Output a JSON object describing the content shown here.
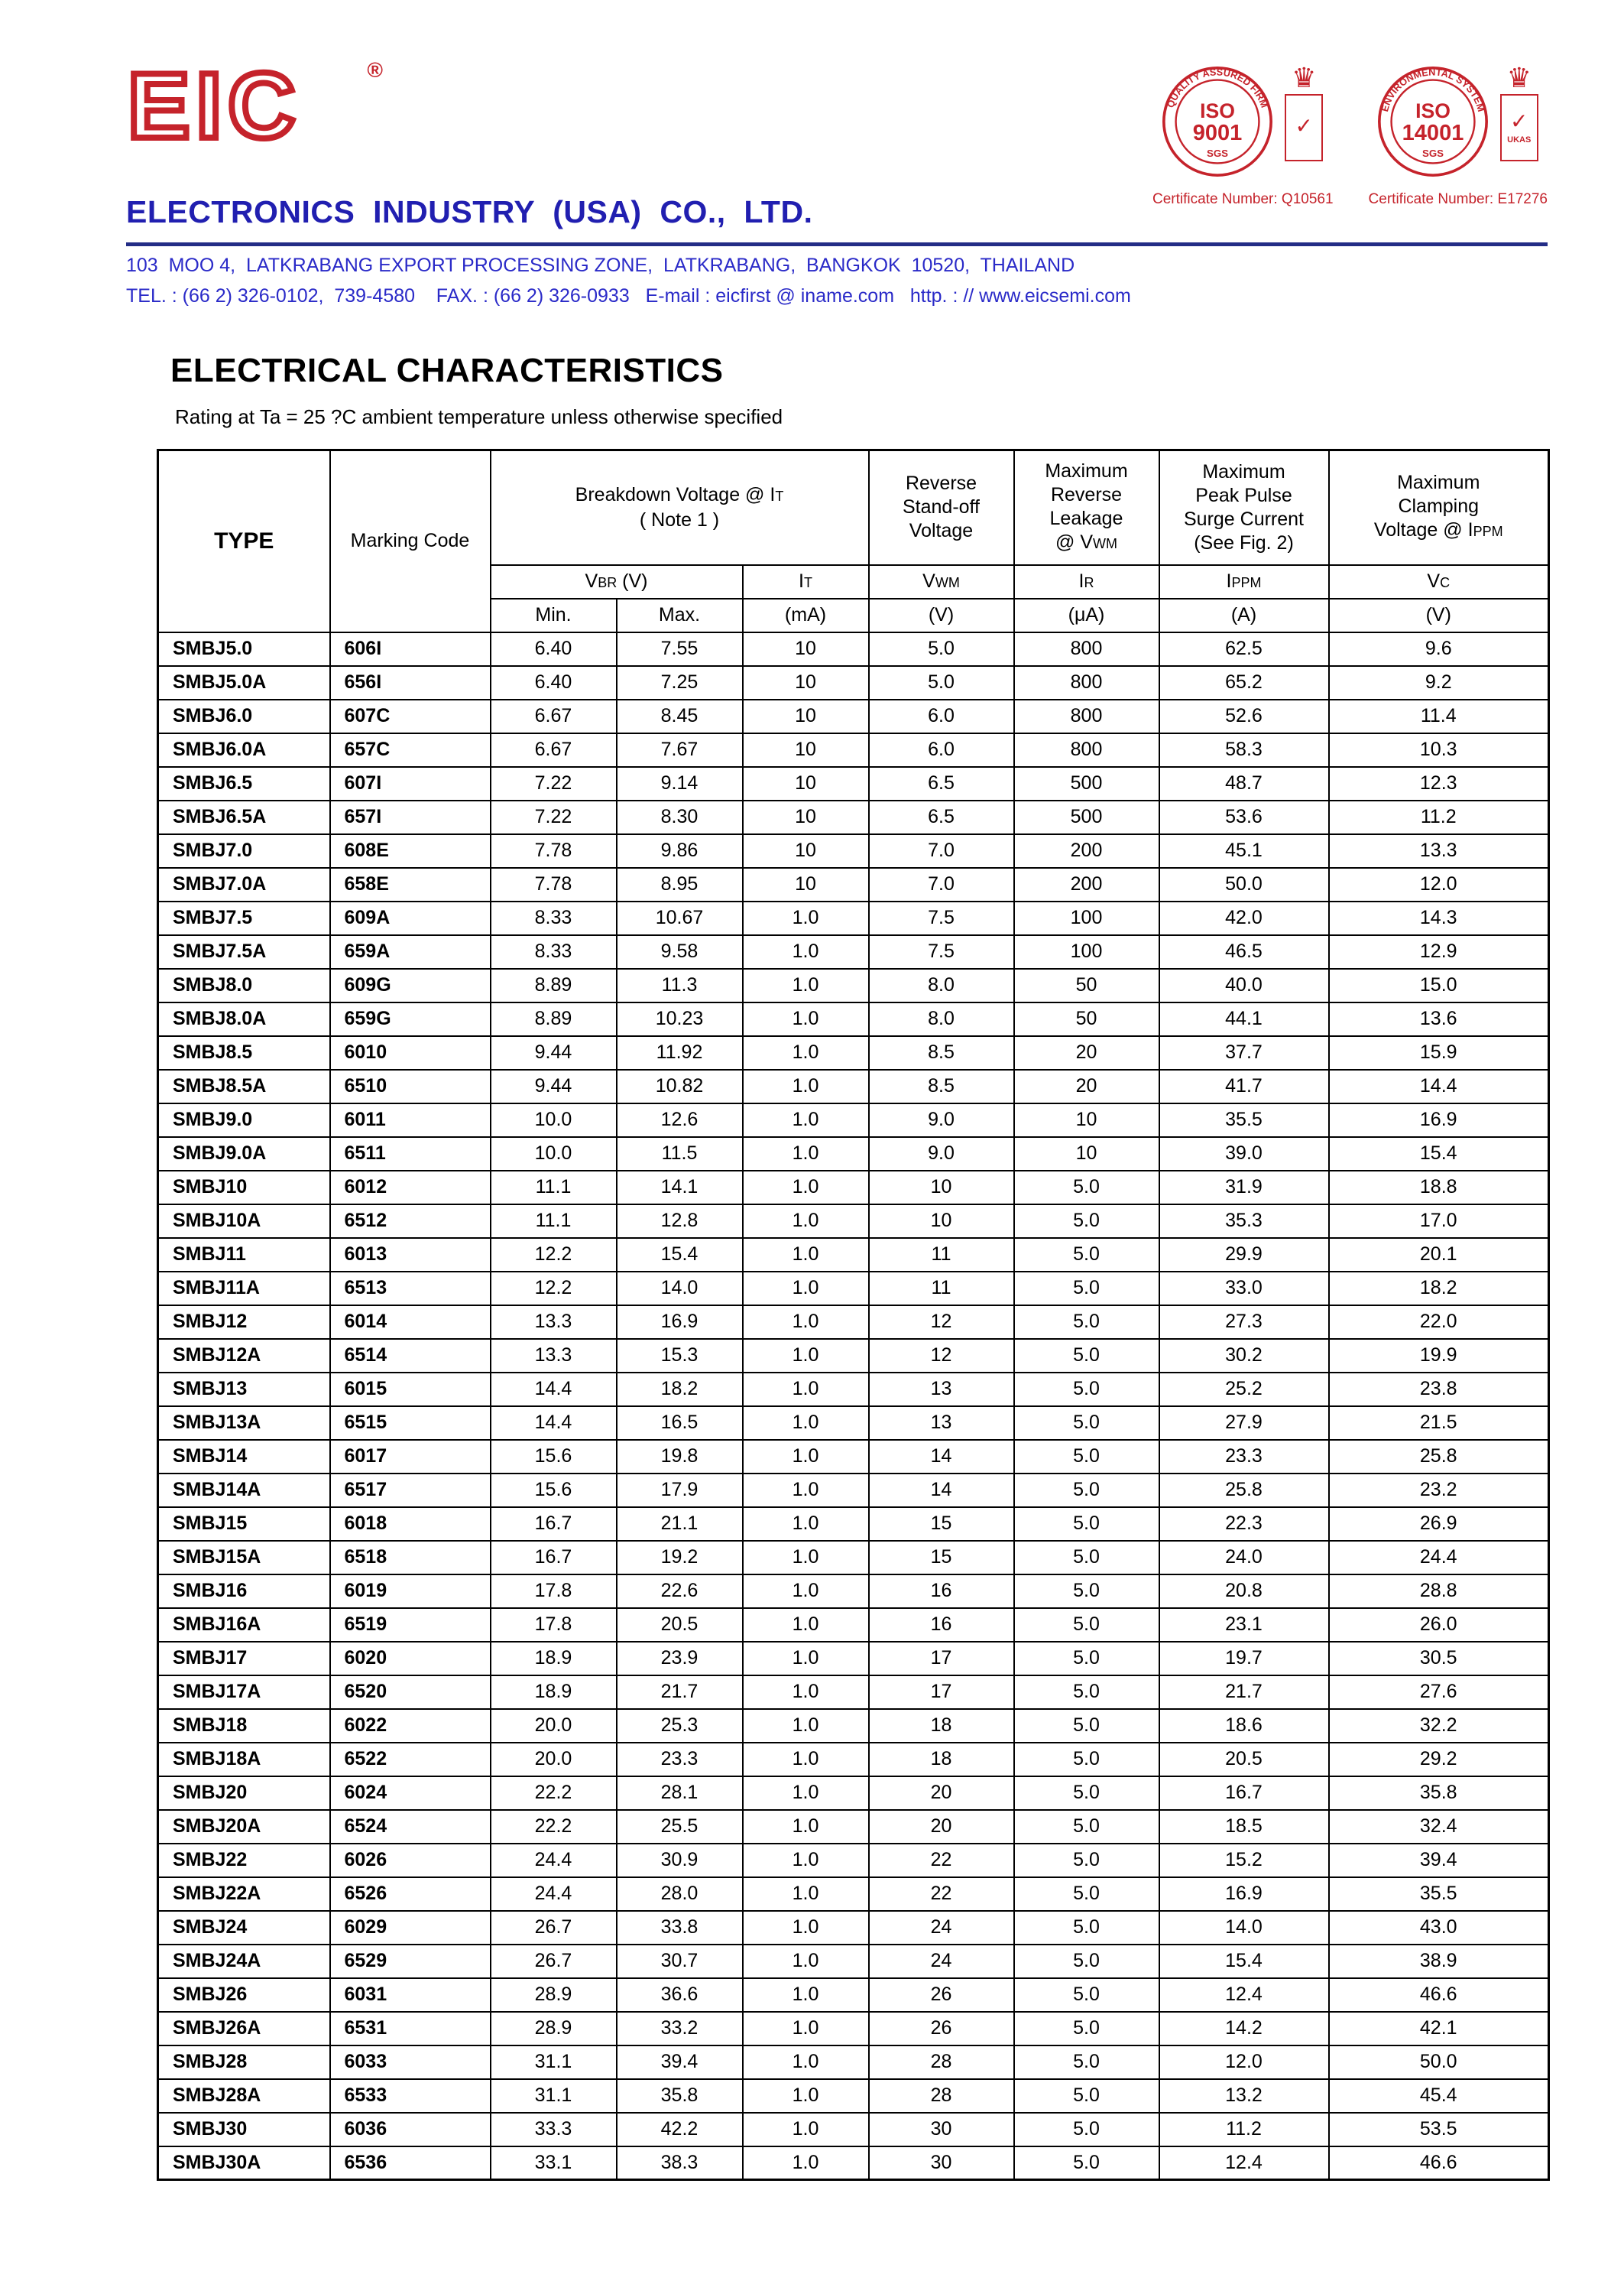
{
  "palette": {
    "red": "#c5232b",
    "blue": "#211fb0",
    "blue2": "#2a2ac8",
    "navy": "#232d86"
  },
  "header": {
    "logo": "EIC",
    "registered": "®",
    "company": "ELECTRONICS  INDUSTRY  (USA)  CO.,  LTD.",
    "badge1": {
      "ring": "QUALITY ASSURED FIRM",
      "iso": "ISO",
      "num": "9001",
      "footer": "SGS",
      "crown": "♛",
      "check": "✓",
      "mini_label": "",
      "cert": "Certificate Number: Q10561"
    },
    "badge2": {
      "ring": "ENVIRONMENTAL SYSTEM",
      "iso": "ISO",
      "num": "14001",
      "footer": "SGS",
      "crown": "♛",
      "check": "✓",
      "mini_label": "UKAS",
      "cert": "Certificate Number: E17276"
    },
    "address": "103  MOO 4,  LATKRABANG EXPORT PROCESSING ZONE,  LATKRABANG,  BANGKOK  10520,  THAILAND",
    "contact": "TEL. : (66 2) 326-0102,  739-4580    FAX. : (66 2) 326-0933   E-mail : eicfirst @ iname.com   http. : // www.eicsemi.com"
  },
  "section": {
    "title": "ELECTRICAL CHARACTERISTICS",
    "subtitle": "Rating at Ta = 25 ?C ambient temperature unless otherwise specified"
  },
  "table": {
    "headers": {
      "type": "TYPE",
      "marking": "Marking Code",
      "breakdown": {
        "pre": "Breakdown Voltage @  I",
        "sub": "T",
        "note": "( Note 1 )"
      },
      "standoff": [
        "Reverse",
        "Stand-off",
        "Voltage"
      ],
      "leakage": [
        "Maximum",
        "Reverse",
        "Leakage"
      ],
      "leakage_at": {
        "pre": "@ V",
        "sub": "WM"
      },
      "surge": [
        "Maximum",
        "Peak Pulse",
        "Surge Current",
        "(See Fig. 2)"
      ],
      "clamping": [
        "Maximum",
        "Clamping"
      ],
      "clamping_at": {
        "pre": "Voltage @ I",
        "sub": "PPM"
      }
    },
    "symbols": {
      "vbr": {
        "base": "V",
        "sub": "BR",
        "unit": "  (V)"
      },
      "it": {
        "base": "I",
        "sub": "T"
      },
      "vwm": {
        "base": "V",
        "sub": "WM"
      },
      "ir": {
        "base": "I",
        "sub": "R"
      },
      "ippm": {
        "base": "I",
        "sub": "PPM"
      },
      "vc": {
        "base": "V",
        "sub": "C"
      }
    },
    "units": {
      "min": "Min.",
      "max": "Max.",
      "it": "(mA)",
      "vwm": "(V)",
      "ir": "(μA)",
      "ippm": "(A)",
      "vc": "(V)"
    },
    "rows": [
      [
        "SMBJ5.0",
        "606I",
        "6.40",
        "7.55",
        "10",
        "5.0",
        "800",
        "62.5",
        "9.6"
      ],
      [
        "SMBJ5.0A",
        "656I",
        "6.40",
        "7.25",
        "10",
        "5.0",
        "800",
        "65.2",
        "9.2"
      ],
      [
        "SMBJ6.0",
        "607C",
        "6.67",
        "8.45",
        "10",
        "6.0",
        "800",
        "52.6",
        "11.4"
      ],
      [
        "SMBJ6.0A",
        "657C",
        "6.67",
        "7.67",
        "10",
        "6.0",
        "800",
        "58.3",
        "10.3"
      ],
      [
        "SMBJ6.5",
        "607I",
        "7.22",
        "9.14",
        "10",
        "6.5",
        "500",
        "48.7",
        "12.3"
      ],
      [
        "SMBJ6.5A",
        "657I",
        "7.22",
        "8.30",
        "10",
        "6.5",
        "500",
        "53.6",
        "11.2"
      ],
      [
        "SMBJ7.0",
        "608E",
        "7.78",
        "9.86",
        "10",
        "7.0",
        "200",
        "45.1",
        "13.3"
      ],
      [
        "SMBJ7.0A",
        "658E",
        "7.78",
        "8.95",
        "10",
        "7.0",
        "200",
        "50.0",
        "12.0"
      ],
      [
        "SMBJ7.5",
        "609A",
        "8.33",
        "10.67",
        "1.0",
        "7.5",
        "100",
        "42.0",
        "14.3"
      ],
      [
        "SMBJ7.5A",
        "659A",
        "8.33",
        "9.58",
        "1.0",
        "7.5",
        "100",
        "46.5",
        "12.9"
      ],
      [
        "SMBJ8.0",
        "609G",
        "8.89",
        "11.3",
        "1.0",
        "8.0",
        "50",
        "40.0",
        "15.0"
      ],
      [
        "SMBJ8.0A",
        "659G",
        "8.89",
        "10.23",
        "1.0",
        "8.0",
        "50",
        "44.1",
        "13.6"
      ],
      [
        "SMBJ8.5",
        "6010",
        "9.44",
        "11.92",
        "1.0",
        "8.5",
        "20",
        "37.7",
        "15.9"
      ],
      [
        "SMBJ8.5A",
        "6510",
        "9.44",
        "10.82",
        "1.0",
        "8.5",
        "20",
        "41.7",
        "14.4"
      ],
      [
        "SMBJ9.0",
        "6011",
        "10.0",
        "12.6",
        "1.0",
        "9.0",
        "10",
        "35.5",
        "16.9"
      ],
      [
        "SMBJ9.0A",
        "6511",
        "10.0",
        "11.5",
        "1.0",
        "9.0",
        "10",
        "39.0",
        "15.4"
      ],
      [
        "SMBJ10",
        "6012",
        "11.1",
        "14.1",
        "1.0",
        "10",
        "5.0",
        "31.9",
        "18.8"
      ],
      [
        "SMBJ10A",
        "6512",
        "11.1",
        "12.8",
        "1.0",
        "10",
        "5.0",
        "35.3",
        "17.0"
      ],
      [
        "SMBJ11",
        "6013",
        "12.2",
        "15.4",
        "1.0",
        "11",
        "5.0",
        "29.9",
        "20.1"
      ],
      [
        "SMBJ11A",
        "6513",
        "12.2",
        "14.0",
        "1.0",
        "11",
        "5.0",
        "33.0",
        "18.2"
      ],
      [
        "SMBJ12",
        "6014",
        "13.3",
        "16.9",
        "1.0",
        "12",
        "5.0",
        "27.3",
        "22.0"
      ],
      [
        "SMBJ12A",
        "6514",
        "13.3",
        "15.3",
        "1.0",
        "12",
        "5.0",
        "30.2",
        "19.9"
      ],
      [
        "SMBJ13",
        "6015",
        "14.4",
        "18.2",
        "1.0",
        "13",
        "5.0",
        "25.2",
        "23.8"
      ],
      [
        "SMBJ13A",
        "6515",
        "14.4",
        "16.5",
        "1.0",
        "13",
        "5.0",
        "27.9",
        "21.5"
      ],
      [
        "SMBJ14",
        "6017",
        "15.6",
        "19.8",
        "1.0",
        "14",
        "5.0",
        "23.3",
        "25.8"
      ],
      [
        "SMBJ14A",
        "6517",
        "15.6",
        "17.9",
        "1.0",
        "14",
        "5.0",
        "25.8",
        "23.2"
      ],
      [
        "SMBJ15",
        "6018",
        "16.7",
        "21.1",
        "1.0",
        "15",
        "5.0",
        "22.3",
        "26.9"
      ],
      [
        "SMBJ15A",
        "6518",
        "16.7",
        "19.2",
        "1.0",
        "15",
        "5.0",
        "24.0",
        "24.4"
      ],
      [
        "SMBJ16",
        "6019",
        "17.8",
        "22.6",
        "1.0",
        "16",
        "5.0",
        "20.8",
        "28.8"
      ],
      [
        "SMBJ16A",
        "6519",
        "17.8",
        "20.5",
        "1.0",
        "16",
        "5.0",
        "23.1",
        "26.0"
      ],
      [
        "SMBJ17",
        "6020",
        "18.9",
        "23.9",
        "1.0",
        "17",
        "5.0",
        "19.7",
        "30.5"
      ],
      [
        "SMBJ17A",
        "6520",
        "18.9",
        "21.7",
        "1.0",
        "17",
        "5.0",
        "21.7",
        "27.6"
      ],
      [
        "SMBJ18",
        "6022",
        "20.0",
        "25.3",
        "1.0",
        "18",
        "5.0",
        "18.6",
        "32.2"
      ],
      [
        "SMBJ18A",
        "6522",
        "20.0",
        "23.3",
        "1.0",
        "18",
        "5.0",
        "20.5",
        "29.2"
      ],
      [
        "SMBJ20",
        "6024",
        "22.2",
        "28.1",
        "1.0",
        "20",
        "5.0",
        "16.7",
        "35.8"
      ],
      [
        "SMBJ20A",
        "6524",
        "22.2",
        "25.5",
        "1.0",
        "20",
        "5.0",
        "18.5",
        "32.4"
      ],
      [
        "SMBJ22",
        "6026",
        "24.4",
        "30.9",
        "1.0",
        "22",
        "5.0",
        "15.2",
        "39.4"
      ],
      [
        "SMBJ22A",
        "6526",
        "24.4",
        "28.0",
        "1.0",
        "22",
        "5.0",
        "16.9",
        "35.5"
      ],
      [
        "SMBJ24",
        "6029",
        "26.7",
        "33.8",
        "1.0",
        "24",
        "5.0",
        "14.0",
        "43.0"
      ],
      [
        "SMBJ24A",
        "6529",
        "26.7",
        "30.7",
        "1.0",
        "24",
        "5.0",
        "15.4",
        "38.9"
      ],
      [
        "SMBJ26",
        "6031",
        "28.9",
        "36.6",
        "1.0",
        "26",
        "5.0",
        "12.4",
        "46.6"
      ],
      [
        "SMBJ26A",
        "6531",
        "28.9",
        "33.2",
        "1.0",
        "26",
        "5.0",
        "14.2",
        "42.1"
      ],
      [
        "SMBJ28",
        "6033",
        "31.1",
        "39.4",
        "1.0",
        "28",
        "5.0",
        "12.0",
        "50.0"
      ],
      [
        "SMBJ28A",
        "6533",
        "31.1",
        "35.8",
        "1.0",
        "28",
        "5.0",
        "13.2",
        "45.4"
      ],
      [
        "SMBJ30",
        "6036",
        "33.3",
        "42.2",
        "1.0",
        "30",
        "5.0",
        "11.2",
        "53.5"
      ],
      [
        "SMBJ30A",
        "6536",
        "33.1",
        "38.3",
        "1.0",
        "30",
        "5.0",
        "12.4",
        "46.6"
      ]
    ]
  }
}
